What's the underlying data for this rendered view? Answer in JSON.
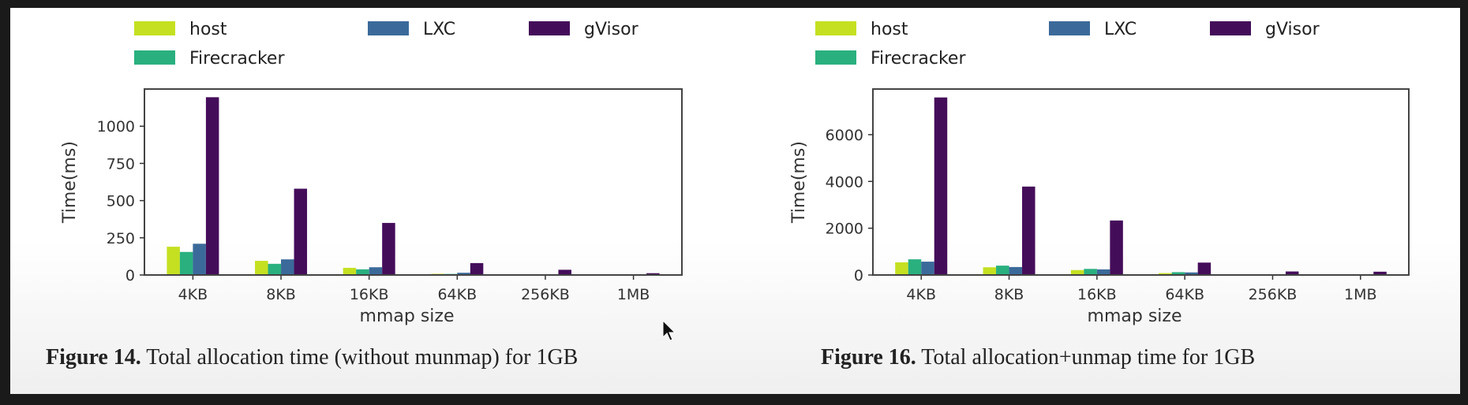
{
  "legend": {
    "items": [
      {
        "label": "host",
        "color": "#c5e021"
      },
      {
        "label": "Firecracker",
        "color": "#2ab07f"
      },
      {
        "label": "LXC",
        "color": "#3b6a9a"
      },
      {
        "label": "gVisor",
        "color": "#440d5a"
      }
    ]
  },
  "figures": [
    {
      "caption_label": "Figure 14.",
      "caption_text": " Total allocation time (without munmap) for 1GB"
    },
    {
      "caption_label": "Figure 16.",
      "caption_text": " Total allocation+unmap time for 1GB"
    }
  ],
  "chart_data": [
    {
      "type": "bar",
      "title": "Figure 14. Total allocation time (without munmap) for 1GB",
      "xlabel": "mmap size",
      "ylabel": "Time(ms)",
      "categories": [
        "4KB",
        "8KB",
        "16KB",
        "64KB",
        "256KB",
        "1MB"
      ],
      "yticks": [
        0,
        250,
        500,
        750,
        1000
      ],
      "ylim": [
        0,
        1250
      ],
      "grid": false,
      "legend_position": "top",
      "series": [
        {
          "name": "host",
          "color": "#c5e021",
          "values": [
            190,
            95,
            48,
            8,
            2,
            1
          ]
        },
        {
          "name": "Firecracker",
          "color": "#2ab07f",
          "values": [
            155,
            75,
            38,
            7,
            2,
            1
          ]
        },
        {
          "name": "LXC",
          "color": "#3b6a9a",
          "values": [
            210,
            105,
            52,
            15,
            2,
            1
          ]
        },
        {
          "name": "gVisor",
          "color": "#440d5a",
          "values": [
            1195,
            580,
            350,
            80,
            35,
            12
          ]
        }
      ]
    },
    {
      "type": "bar",
      "title": "Figure 16. Total allocation+unmap time for 1GB",
      "xlabel": "mmap size",
      "ylabel": "Time(ms)",
      "categories": [
        "4KB",
        "8KB",
        "16KB",
        "64KB",
        "256KB",
        "1MB"
      ],
      "yticks": [
        0,
        2000,
        4000,
        6000
      ],
      "ylim": [
        0,
        7950
      ],
      "grid": false,
      "legend_position": "top",
      "series": [
        {
          "name": "host",
          "color": "#c5e021",
          "values": [
            540,
            330,
            210,
            80,
            10,
            5
          ]
        },
        {
          "name": "Firecracker",
          "color": "#2ab07f",
          "values": [
            670,
            400,
            260,
            120,
            15,
            8
          ]
        },
        {
          "name": "LXC",
          "color": "#3b6a9a",
          "values": [
            570,
            340,
            240,
            110,
            12,
            6
          ]
        },
        {
          "name": "gVisor",
          "color": "#440d5a",
          "values": [
            7590,
            3780,
            2330,
            530,
            150,
            140
          ]
        }
      ]
    }
  ]
}
